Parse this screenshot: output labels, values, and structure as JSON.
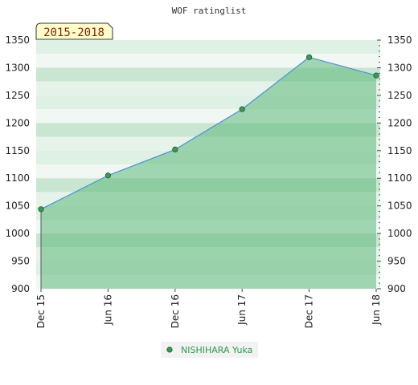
{
  "chart_data": {
    "type": "area",
    "title": "WOF ratinglist",
    "period_label": "2015-2018",
    "x": [
      "Dec 15",
      "Jun 16",
      "Dec 16",
      "Jun 17",
      "Dec 17",
      "Jun 18"
    ],
    "series": [
      {
        "name": "NISHIHARA Yuka",
        "values": [
          1044,
          1105,
          1152,
          1225,
          1319,
          1286
        ]
      }
    ],
    "yticks": [
      900,
      950,
      1000,
      1050,
      1100,
      1150,
      1200,
      1250,
      1300,
      1350
    ],
    "ylim": [
      900,
      1350
    ],
    "y_axis": "both-sides",
    "grid": "horizontal-bands",
    "legend": "bottom-center",
    "colors": {
      "area": "#5db87a",
      "line": "#4a90d9",
      "marker": "#3a9a55",
      "badge_bg": "#ffffcc",
      "legend_bg": "#f2f2f2"
    }
  }
}
